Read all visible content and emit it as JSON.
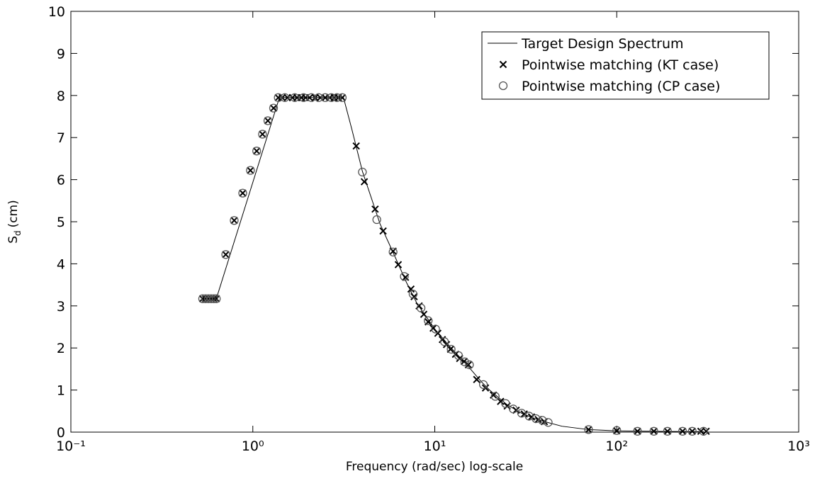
{
  "chart_data": {
    "type": "line",
    "xlabel": "Frequency (rad/sec) log-scale",
    "ylabel": {
      "symbol": "S",
      "subscript": "d",
      "unit": "(cm)"
    },
    "xscale": "log",
    "xlim": [
      0.1,
      1000
    ],
    "xticks": [
      {
        "value": 0.1,
        "label": "10⁻¹"
      },
      {
        "value": 1,
        "label": "10⁰"
      },
      {
        "value": 10,
        "label": "10¹"
      },
      {
        "value": 100,
        "label": "10²"
      },
      {
        "value": 1000,
        "label": "10³"
      }
    ],
    "ylim": [
      0,
      10
    ],
    "yticks": [
      0,
      1,
      2,
      3,
      4,
      5,
      6,
      7,
      8,
      9,
      10
    ],
    "grid": false,
    "legend": "upper right",
    "series": [
      {
        "name": "Target Design Spectrum",
        "style": "line",
        "color": "#000000",
        "x": [
          0.52,
          0.63,
          1.4,
          3.15,
          3.5,
          4,
          5,
          6,
          7,
          8,
          10,
          12,
          15,
          18,
          20,
          25,
          30,
          35,
          40,
          50,
          70,
          100,
          150,
          200,
          300
        ],
        "values": [
          3.17,
          3.17,
          7.95,
          7.95,
          7.2,
          6.2,
          4.95,
          4.2,
          3.55,
          3.05,
          2.45,
          2.05,
          1.6,
          1.2,
          1.0,
          0.65,
          0.45,
          0.33,
          0.25,
          0.14,
          0.06,
          0.03,
          0.02,
          0.015,
          0.01
        ]
      },
      {
        "name": "Pointwise matching (KT case)",
        "style": "x",
        "color": "#000000",
        "x": [
          0.53,
          0.55,
          0.57,
          0.59,
          0.61,
          0.63,
          0.71,
          0.79,
          0.88,
          0.97,
          1.05,
          1.13,
          1.21,
          1.3,
          1.38,
          1.45,
          1.55,
          1.65,
          1.75,
          1.85,
          1.95,
          2.05,
          2.2,
          2.35,
          2.5,
          2.65,
          2.8,
          2.95,
          3.1,
          3.7,
          4.1,
          4.7,
          5.2,
          5.9,
          6.3,
          6.9,
          7.4,
          7.7,
          8.2,
          8.7,
          9.2,
          9.8,
          10.4,
          11,
          11.6,
          12.2,
          13,
          13.7,
          14.5,
          15.3,
          17,
          19,
          21,
          23,
          25,
          28,
          31,
          34,
          37,
          40,
          70,
          100,
          130,
          160,
          190,
          230,
          260,
          290,
          310
        ],
        "values": [
          3.17,
          3.17,
          3.17,
          3.17,
          3.17,
          3.17,
          4.22,
          5.03,
          5.68,
          6.22,
          6.68,
          7.08,
          7.4,
          7.7,
          7.95,
          7.95,
          7.95,
          7.95,
          7.95,
          7.95,
          7.95,
          7.95,
          7.95,
          7.95,
          7.95,
          7.95,
          7.95,
          7.95,
          7.95,
          6.8,
          5.95,
          5.3,
          4.78,
          4.3,
          3.98,
          3.68,
          3.4,
          3.22,
          3.0,
          2.8,
          2.62,
          2.47,
          2.35,
          2.2,
          2.08,
          1.97,
          1.85,
          1.75,
          1.68,
          1.6,
          1.25,
          1.05,
          0.88,
          0.73,
          0.62,
          0.52,
          0.43,
          0.36,
          0.3,
          0.25,
          0.06,
          0.03,
          0.02,
          0.02,
          0.02,
          0.02,
          0.02,
          0.02,
          0.02
        ]
      },
      {
        "name": "Pointwise matching (CP case)",
        "style": "o",
        "color": "#555555",
        "x": [
          0.53,
          0.55,
          0.57,
          0.59,
          0.61,
          0.63,
          0.71,
          0.79,
          0.88,
          0.97,
          1.05,
          1.13,
          1.21,
          1.3,
          1.38,
          1.5,
          1.7,
          1.9,
          2.1,
          2.3,
          2.5,
          2.7,
          2.9,
          3.1,
          4.0,
          4.8,
          5.9,
          6.8,
          7.6,
          8.4,
          9.2,
          10.1,
          11.3,
          12.3,
          13.5,
          14.6,
          15.5,
          18.5,
          21.5,
          24.5,
          27,
          30,
          33,
          36,
          39,
          42,
          70,
          100,
          130,
          160,
          190,
          230,
          260,
          300
        ],
        "values": [
          3.17,
          3.17,
          3.17,
          3.17,
          3.17,
          3.17,
          4.22,
          5.03,
          5.68,
          6.22,
          6.68,
          7.08,
          7.4,
          7.7,
          7.95,
          7.95,
          7.95,
          7.95,
          7.95,
          7.95,
          7.95,
          7.95,
          7.95,
          7.95,
          6.18,
          5.05,
          4.28,
          3.7,
          3.28,
          2.95,
          2.65,
          2.45,
          2.15,
          1.97,
          1.82,
          1.67,
          1.6,
          1.13,
          0.85,
          0.68,
          0.55,
          0.45,
          0.38,
          0.32,
          0.28,
          0.23,
          0.06,
          0.04,
          0.02,
          0.02,
          0.02,
          0.02,
          0.02,
          0.02
        ]
      }
    ]
  }
}
